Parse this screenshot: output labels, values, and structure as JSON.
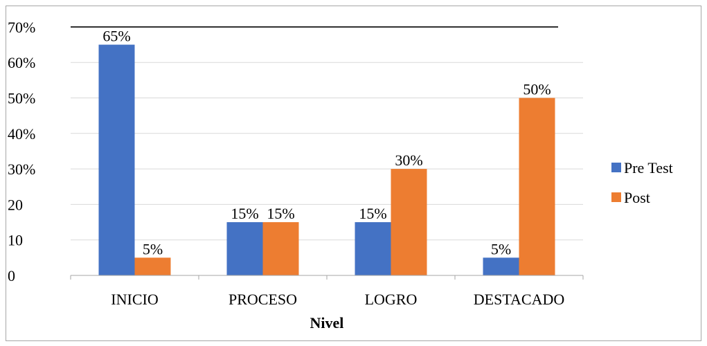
{
  "chart_data": {
    "type": "bar",
    "categories": [
      "INICIO",
      "PROCESO",
      "LOGRO",
      "DESTACADO"
    ],
    "series": [
      {
        "name": "Pre Test",
        "color": "#4472c4",
        "values": [
          65,
          15,
          15,
          5
        ],
        "labels": [
          "65%",
          "15%",
          "15%",
          "5%"
        ]
      },
      {
        "name": "Post",
        "color": "#ed7d31",
        "values": [
          5,
          15,
          30,
          50
        ],
        "labels": [
          "5%",
          "15%",
          "30%",
          "50%"
        ]
      }
    ],
    "y_ticks": [
      {
        "value": 0,
        "label": "0"
      },
      {
        "value": 10,
        "label": "10"
      },
      {
        "value": 20,
        "label": "20"
      },
      {
        "value": 30,
        "label": "30%"
      },
      {
        "value": 40,
        "label": "40%"
      },
      {
        "value": 50,
        "label": "50%"
      },
      {
        "value": 60,
        "label": "60%"
      },
      {
        "value": 70,
        "label": "70%"
      }
    ],
    "ylim": [
      0,
      70
    ],
    "xlabel": "Nivel",
    "ylabel": "",
    "legend_position": "right",
    "grid": true
  }
}
